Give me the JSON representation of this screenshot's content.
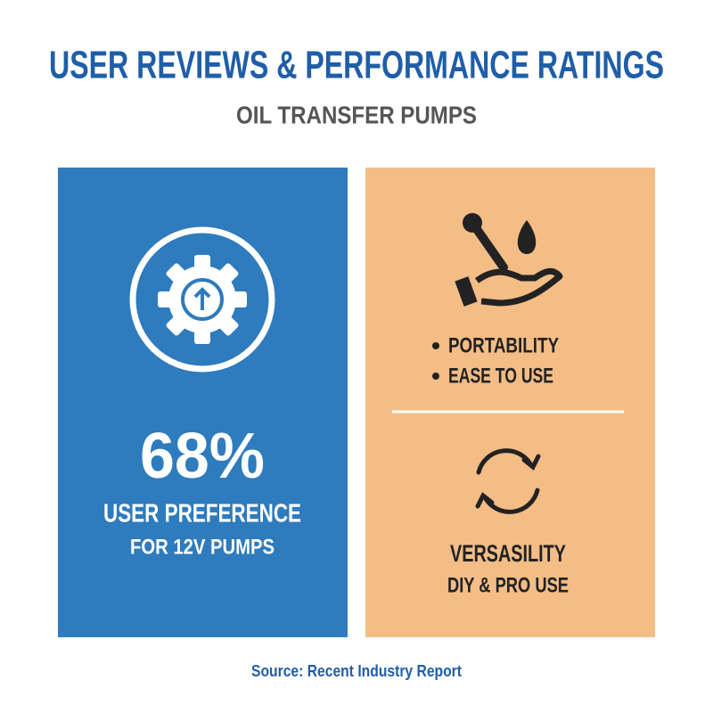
{
  "header": {
    "title": "USER REVIEWS & PERFORMANCE RATINGS",
    "subtitle": "OIL TRANSFER PUMPS"
  },
  "left_panel": {
    "stat": "68%",
    "line1": "USER PREFERENCE",
    "line2": "FOR 12V PUMPS"
  },
  "right_panel": {
    "features": [
      "PORTABILITY",
      "EASE TO USE"
    ],
    "heading": "VERSASILITY",
    "subheading": "DIY & PRO USE"
  },
  "footer": {
    "source": "Source: Recent Industry Report"
  }
}
